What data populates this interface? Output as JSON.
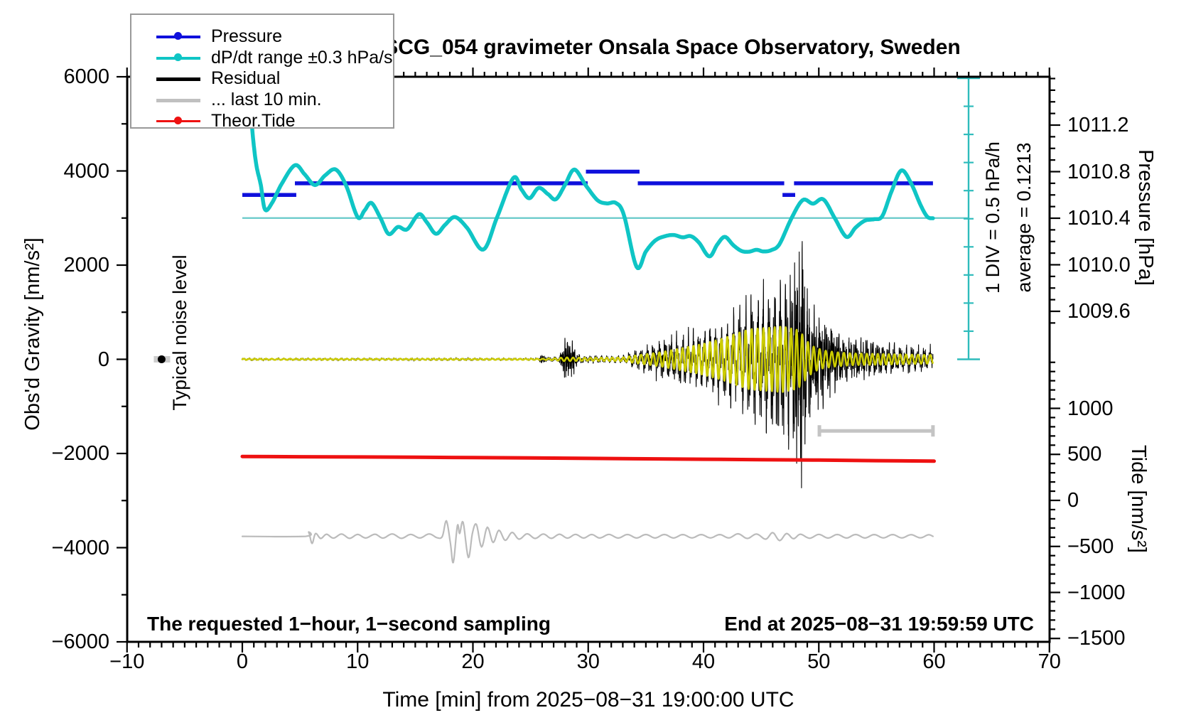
{
  "title": "SCG_054 gravimeter Onsala Space Observatory, Sweden",
  "axes": {
    "left": {
      "label": "Obs'd Gravity [nm/s²]",
      "tick_values": [
        6000,
        4000,
        2000,
        0,
        -2000,
        -4000,
        -6000
      ],
      "minor_step": 1000,
      "range": [
        -6000,
        6000
      ]
    },
    "bottom": {
      "label": "Time [min] from 2025−08−31 19:00:00 UTC",
      "tick_values": [
        -10,
        0,
        10,
        20,
        30,
        40,
        50,
        60,
        70
      ],
      "minor_step": 1,
      "range": [
        -10,
        70
      ]
    },
    "pressure": {
      "label": "Pressure [hPa]",
      "tick_labels": [
        "1011.2",
        "1010.8",
        "1010.4",
        "1010.0",
        "1009.6"
      ],
      "minor_step": 0.1
    },
    "tide": {
      "label": "Tide [nm/s²]",
      "tick_values": [
        1000,
        500,
        0,
        -500,
        -1000,
        -1500
      ],
      "minor_step": 100
    }
  },
  "legend": {
    "items": [
      {
        "label": "Pressure",
        "color": "#0f10dc",
        "dot": true,
        "weight": 4
      },
      {
        "label": "dP/dt range ±0.3 hPa/s",
        "color": "#0fc5c5",
        "dot": true,
        "weight": 4
      },
      {
        "label": "Residual",
        "color": "#000000",
        "dot": false,
        "weight": 5
      },
      {
        "label": "... last 10 min.",
        "color": "#c0c0c0",
        "dot": false,
        "weight": 5
      },
      {
        "label": "Theor.Tide",
        "color": "#ee1111",
        "dot": true,
        "weight": 3
      }
    ]
  },
  "annotations": {
    "noise_label": "Typical noise level",
    "div_label": "1 DIV = 0.5 hPa/h",
    "avg_label": "average = 0.1213",
    "sampling_note": "The requested 1−hour, 1−second sampling",
    "end_note": "End at 2025−08−31 19:59:59 UTC"
  },
  "colors": {
    "pressure_blue": "#0f10dc",
    "dpdt_cyan": "#0fc5c5",
    "avg_line_cyan": "#66c9c9",
    "scalebar_cyan": "#2fbcbc",
    "residual_black": "#000000",
    "filtered_yellow": "#cccc00",
    "last10_gray": "#bbbbbb",
    "window_bar_gray": "#c4c4c4",
    "tide_red": "#ee1111",
    "frame": "#000000"
  },
  "chart_data": {
    "type": "line",
    "title": "SCG_054 gravimeter Onsala Space Observatory, Sweden",
    "xlabel": "Time [min] from 2025−08−31 19:00:00 UTC",
    "x_range": [
      -10,
      70
    ],
    "left_axis": {
      "label": "Obs'd Gravity [nm/s²]",
      "range": [
        -6000,
        6000
      ]
    },
    "pressure_axis": {
      "label": "Pressure [hPa]",
      "ticks": [
        1011.2,
        1010.8,
        1010.4,
        1010.0,
        1009.6
      ]
    },
    "tide_axis": {
      "label": "Tide [nm/s²]",
      "range_shown": [
        -1500,
        1000
      ]
    },
    "grid": false,
    "legend_position": "top-left",
    "series": [
      {
        "name": "Pressure",
        "units": "hPa",
        "style": "step-segments",
        "segments_t0_t1_value": [
          [
            0.0,
            4.68,
            1010.6
          ],
          [
            4.56,
            29.95,
            1010.7
          ],
          [
            29.8,
            34.45,
            1010.8
          ],
          [
            34.3,
            47.0,
            1010.7
          ],
          [
            46.85,
            47.95,
            1010.6
          ],
          [
            47.85,
            59.9,
            1010.7
          ]
        ]
      },
      {
        "name": "dP/dt range ±0.3 hPa/s",
        "units": "plotted in left-axis units; horizontal reference line at 3000 = average 0.1213 hPa/h, scale 1 DIV = 0.5 hPa/h",
        "style": "smooth",
        "points": [
          [
            0.52,
            6000
          ],
          [
            0.86,
            4880
          ],
          [
            1.2,
            4150
          ],
          [
            1.6,
            3705
          ],
          [
            1.97,
            3180
          ],
          [
            2.6,
            3330
          ],
          [
            3.4,
            3720
          ],
          [
            4.55,
            4120
          ],
          [
            5.4,
            3930
          ],
          [
            6.3,
            3700
          ],
          [
            7.2,
            3910
          ],
          [
            8.1,
            4030
          ],
          [
            9.0,
            3690
          ],
          [
            10.0,
            3020
          ],
          [
            10.6,
            3160
          ],
          [
            11.2,
            3320
          ],
          [
            12.0,
            2990
          ],
          [
            12.7,
            2660
          ],
          [
            13.5,
            2810
          ],
          [
            14.3,
            2760
          ],
          [
            15.3,
            3080
          ],
          [
            16.0,
            2910
          ],
          [
            16.8,
            2665
          ],
          [
            17.6,
            2860
          ],
          [
            18.45,
            3020
          ],
          [
            19.5,
            2790
          ],
          [
            20.9,
            2330
          ],
          [
            22.1,
            3020
          ],
          [
            23.5,
            3850
          ],
          [
            24.2,
            3610
          ],
          [
            24.9,
            3420
          ],
          [
            25.7,
            3640
          ],
          [
            26.5,
            3510
          ],
          [
            27.2,
            3400
          ],
          [
            28.0,
            3710
          ],
          [
            28.8,
            4030
          ],
          [
            29.8,
            3690
          ],
          [
            30.8,
            3380
          ],
          [
            31.6,
            3310
          ],
          [
            32.4,
            3320
          ],
          [
            33.1,
            3060
          ],
          [
            34.2,
            1960
          ],
          [
            35.0,
            2290
          ],
          [
            35.8,
            2520
          ],
          [
            36.6,
            2610
          ],
          [
            37.4,
            2640
          ],
          [
            38.2,
            2590
          ],
          [
            38.9,
            2615
          ],
          [
            39.6,
            2480
          ],
          [
            40.5,
            2185
          ],
          [
            41.2,
            2440
          ],
          [
            41.85,
            2600
          ],
          [
            42.6,
            2420
          ],
          [
            43.3,
            2300
          ],
          [
            43.95,
            2285
          ],
          [
            44.6,
            2325
          ],
          [
            45.2,
            2290
          ],
          [
            45.9,
            2320
          ],
          [
            46.6,
            2450
          ],
          [
            47.6,
            2980
          ],
          [
            48.6,
            3380
          ],
          [
            49.5,
            3305
          ],
          [
            50.4,
            3395
          ],
          [
            51.4,
            2990
          ],
          [
            52.4,
            2600
          ],
          [
            53.2,
            2800
          ],
          [
            54.0,
            2945
          ],
          [
            54.8,
            2975
          ],
          [
            55.5,
            3040
          ],
          [
            56.3,
            3560
          ],
          [
            57.15,
            4010
          ],
          [
            58.0,
            3740
          ],
          [
            58.8,
            3290
          ],
          [
            59.4,
            3030
          ],
          [
            59.9,
            2995
          ]
        ],
        "average_line_value": 3000,
        "average_hpa_per_h": 0.1213
      },
      {
        "name": "Residual",
        "units": "nm/s²",
        "style": "seismogram (earthquake signal; quiet until ~26 min, P burst ~27.8–29, surface waves build from ~33.5, peak ~48.5, coda to 60)",
        "envelope_t_amp": [
          [
            0,
            25
          ],
          [
            25.7,
            25
          ],
          [
            25.9,
            110
          ],
          [
            26.1,
            130
          ],
          [
            26.35,
            45
          ],
          [
            27.4,
            45
          ],
          [
            27.65,
            200
          ],
          [
            27.9,
            480
          ],
          [
            28.3,
            520
          ],
          [
            28.7,
            420
          ],
          [
            29.1,
            120
          ],
          [
            29.6,
            70
          ],
          [
            31.0,
            60
          ],
          [
            33.0,
            65
          ],
          [
            33.8,
            130
          ],
          [
            34.8,
            220
          ],
          [
            36.0,
            330
          ],
          [
            37.5,
            420
          ],
          [
            39.0,
            480
          ],
          [
            40.5,
            520
          ],
          [
            42.0,
            640
          ],
          [
            43.0,
            800
          ],
          [
            44.0,
            1000
          ],
          [
            45.0,
            1120
          ],
          [
            46.0,
            1260
          ],
          [
            47.0,
            1500
          ],
          [
            47.7,
            1850
          ],
          [
            48.2,
            2200
          ],
          [
            48.5,
            2300
          ],
          [
            48.9,
            1700
          ],
          [
            49.4,
            1250
          ],
          [
            50.2,
            950
          ],
          [
            51.0,
            780
          ],
          [
            52.0,
            600
          ],
          [
            53.0,
            480
          ],
          [
            54.5,
            380
          ],
          [
            56.0,
            300
          ],
          [
            57.5,
            260
          ],
          [
            59.0,
            220
          ],
          [
            60.0,
            210
          ]
        ],
        "peak_spikes_t_value": [
          [
            47.9,
            2050
          ],
          [
            48.08,
            -2210
          ],
          [
            48.3,
            2280
          ],
          [
            48.5,
            -2730
          ],
          [
            48.62,
            1900
          ],
          [
            48.8,
            -1800
          ],
          [
            49.0,
            1500
          ]
        ]
      },
      {
        "name": "Residual low-frequency (yellow overlay)",
        "units": "nm/s²",
        "style": "sinusoid period ≈ 0.5 min",
        "envelope_t_amp": [
          [
            0,
            12
          ],
          [
            26,
            12
          ],
          [
            27,
            20
          ],
          [
            28,
            40
          ],
          [
            30,
            30
          ],
          [
            33,
            40
          ],
          [
            34,
            80
          ],
          [
            36,
            140
          ],
          [
            38,
            230
          ],
          [
            40,
            330
          ],
          [
            41.5,
            430
          ],
          [
            43,
            560
          ],
          [
            44,
            640
          ],
          [
            45,
            660
          ],
          [
            46,
            680
          ],
          [
            46.8,
            700
          ],
          [
            47.5,
            660
          ],
          [
            48.2,
            620
          ],
          [
            48.6,
            520
          ],
          [
            49,
            380
          ],
          [
            49.6,
            260
          ],
          [
            50.4,
            190
          ],
          [
            51.5,
            150
          ],
          [
            53,
            125
          ],
          [
            55,
            115
          ],
          [
            57,
            105
          ],
          [
            59,
            95
          ],
          [
            60,
            90
          ]
        ]
      },
      {
        "name": "... last 10 min.",
        "units": "nm/s² offsets about baseline −3760",
        "style": "smooth gray trace",
        "baseline_value": -3760,
        "offsets_t_value": [
          [
            0,
            0
          ],
          [
            5.5,
            0
          ],
          [
            5.75,
            90
          ],
          [
            6.05,
            -150
          ],
          [
            6.35,
            60
          ],
          [
            6.8,
            -45
          ],
          [
            7.3,
            45
          ],
          [
            7.9,
            -38
          ],
          [
            8.6,
            50
          ],
          [
            9.3,
            -42
          ],
          [
            10.0,
            42
          ],
          [
            10.7,
            -35
          ],
          [
            11.5,
            45
          ],
          [
            12.2,
            -38
          ],
          [
            13.0,
            52
          ],
          [
            13.8,
            -42
          ],
          [
            14.6,
            42
          ],
          [
            15.4,
            -35
          ],
          [
            16.2,
            52
          ],
          [
            16.9,
            -30
          ],
          [
            17.35,
            0
          ],
          [
            17.7,
            330
          ],
          [
            18.05,
            -150
          ],
          [
            18.3,
            -555
          ],
          [
            18.65,
            225
          ],
          [
            18.85,
            60
          ],
          [
            19.15,
            300
          ],
          [
            19.6,
            -450
          ],
          [
            19.95,
            60
          ],
          [
            20.3,
            255
          ],
          [
            20.75,
            -225
          ],
          [
            21.25,
            195
          ],
          [
            21.75,
            -130
          ],
          [
            22.25,
            130
          ],
          [
            22.8,
            -85
          ],
          [
            23.4,
            85
          ],
          [
            24.0,
            -60
          ],
          [
            24.7,
            55
          ],
          [
            25.4,
            -45
          ],
          [
            26.1,
            50
          ],
          [
            26.8,
            -42
          ],
          [
            27.5,
            45
          ],
          [
            28.2,
            -38
          ],
          [
            28.9,
            42
          ],
          [
            29.6,
            -36
          ],
          [
            30.3,
            40
          ],
          [
            31.0,
            -35
          ],
          [
            31.8,
            42
          ],
          [
            32.6,
            -36
          ],
          [
            33.4,
            40
          ],
          [
            34.2,
            -34
          ],
          [
            35.0,
            40
          ],
          [
            35.8,
            -34
          ],
          [
            36.6,
            40
          ],
          [
            37.4,
            -34
          ],
          [
            38.2,
            38
          ],
          [
            39.0,
            -33
          ],
          [
            39.8,
            38
          ],
          [
            40.6,
            -33
          ],
          [
            41.4,
            38
          ],
          [
            42.2,
            -33
          ],
          [
            43.0,
            55
          ],
          [
            43.8,
            -45
          ],
          [
            44.6,
            50
          ],
          [
            45.4,
            -60
          ],
          [
            46.0,
            80
          ],
          [
            46.6,
            -90
          ],
          [
            47.2,
            60
          ],
          [
            47.8,
            -50
          ],
          [
            48.4,
            45
          ],
          [
            49.2,
            -40
          ],
          [
            50.0,
            42
          ],
          [
            50.8,
            -36
          ],
          [
            51.6,
            40
          ],
          [
            52.4,
            -35
          ],
          [
            53.2,
            40
          ],
          [
            54.0,
            -34
          ],
          [
            54.8,
            38
          ],
          [
            55.6,
            -33
          ],
          [
            56.4,
            38
          ],
          [
            57.2,
            -33
          ],
          [
            58.0,
            36
          ],
          [
            58.8,
            -32
          ],
          [
            59.5,
            34
          ],
          [
            59.9,
            0
          ]
        ]
      },
      {
        "name": "Theor.Tide",
        "units": "nm/s² (tide axis)",
        "style": "thick red line",
        "points": [
          [
            0,
            477
          ],
          [
            5,
            474.5
          ],
          [
            10,
            472
          ],
          [
            15,
            469
          ],
          [
            20,
            465
          ],
          [
            25,
            461
          ],
          [
            30,
            456.5
          ],
          [
            35,
            452
          ],
          [
            40,
            447
          ],
          [
            45,
            442.5
          ],
          [
            50,
            437.5
          ],
          [
            55,
            432
          ],
          [
            60,
            426.5
          ]
        ]
      }
    ],
    "markers": {
      "typical_noise_dot": {
        "t": -7,
        "value": 0,
        "label": "Typical noise level"
      },
      "last10_window_bar": {
        "t0": 50.05,
        "t1": 59.9,
        "value": -1520
      },
      "dpdt_average_line": {
        "t0": 0,
        "t1": 63,
        "value": 3000
      },
      "dpdt_scale_bar": {
        "t": 63,
        "value_top": 6000,
        "value_bottom": 50,
        "divisions": 10
      }
    }
  }
}
